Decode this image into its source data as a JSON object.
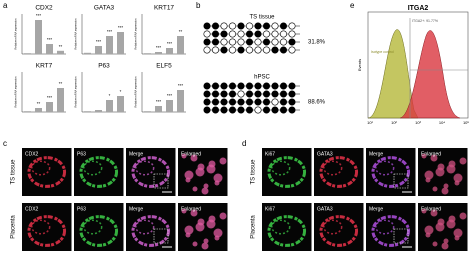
{
  "panel_labels": [
    "a",
    "b",
    "c",
    "d",
    "e"
  ],
  "chart_data": [
    {
      "type": "bar",
      "title": "CDX2",
      "y_label": "Relative mRNA expression",
      "categories": [
        null,
        null,
        null,
        null
      ],
      "values": [
        2,
        85,
        25,
        8
      ],
      "annotations": [
        null,
        "***",
        "***",
        "**"
      ],
      "color": "#a6a6a6",
      "ylim": [
        0,
        100
      ]
    },
    {
      "type": "bar",
      "title": "GATA3",
      "y_label": "Relative mRNA expression",
      "categories": [
        null,
        null,
        null,
        null
      ],
      "values": [
        3,
        20,
        45,
        55
      ],
      "annotations": [
        null,
        "***",
        "***",
        "***"
      ],
      "color": "#a6a6a6",
      "ylim": [
        0,
        100
      ]
    },
    {
      "type": "bar",
      "title": "KRT17",
      "y_label": "Relative mRNA expression",
      "categories": [
        null,
        null,
        null,
        null
      ],
      "values": [
        2,
        5,
        15,
        45
      ],
      "annotations": [
        null,
        "***",
        "***",
        "**"
      ],
      "color": "#a6a6a6",
      "ylim": [
        0,
        100
      ]
    },
    {
      "type": "bar",
      "title": "KRT7",
      "y_label": "Relative mRNA expression",
      "categories": [
        null,
        null,
        null,
        null
      ],
      "values": [
        2,
        10,
        25,
        60
      ],
      "annotations": [
        null,
        "**",
        "***",
        "**"
      ],
      "color": "#a6a6a6",
      "ylim": [
        0,
        100
      ]
    },
    {
      "type": "bar",
      "title": "P63",
      "y_label": "Relative mRNA expression",
      "categories": [
        null,
        null,
        null,
        null
      ],
      "values": [
        2,
        5,
        30,
        40
      ],
      "annotations": [
        null,
        null,
        "*",
        "*"
      ],
      "color": "#a6a6a6",
      "ylim": [
        0,
        100
      ]
    },
    {
      "type": "bar",
      "title": "ELF5",
      "y_label": "Relative mRNA expression",
      "categories": [
        null,
        null,
        null,
        null
      ],
      "values": [
        2,
        15,
        30,
        55
      ],
      "annotations": [
        null,
        "***",
        "***",
        "***"
      ],
      "color": "#a6a6a6",
      "ylim": [
        0,
        100
      ]
    }
  ],
  "panel_b": {
    "groups": [
      {
        "label": "TS tissue",
        "percent": "31.8%"
      },
      {
        "label": "hPSC",
        "percent": "88.6%"
      }
    ]
  },
  "panel_c": {
    "row_labels": [
      "TS tissue",
      "Placenta"
    ],
    "rows": [
      [
        "CDX2",
        "P63",
        "Merge",
        "Enlarged"
      ],
      [
        "CDX2",
        "P63",
        "Merge",
        "Enlarged"
      ]
    ]
  },
  "panel_d": {
    "row_labels": [
      "TS tissue",
      "Placenta"
    ],
    "rows": [
      [
        "Ki67",
        "GATA3",
        "Merge",
        "Enlarged"
      ],
      [
        "Ki67",
        "GATA3",
        "Merge",
        "Enlarged"
      ]
    ]
  },
  "panel_e": {
    "title": "ITGA2",
    "legend": "Isotype control",
    "gate": "ITGA2+: 91.77%",
    "y_label": "Events",
    "xticks": [
      "10¹",
      "10²",
      "10³",
      "10⁴",
      "10⁵"
    ]
  }
}
